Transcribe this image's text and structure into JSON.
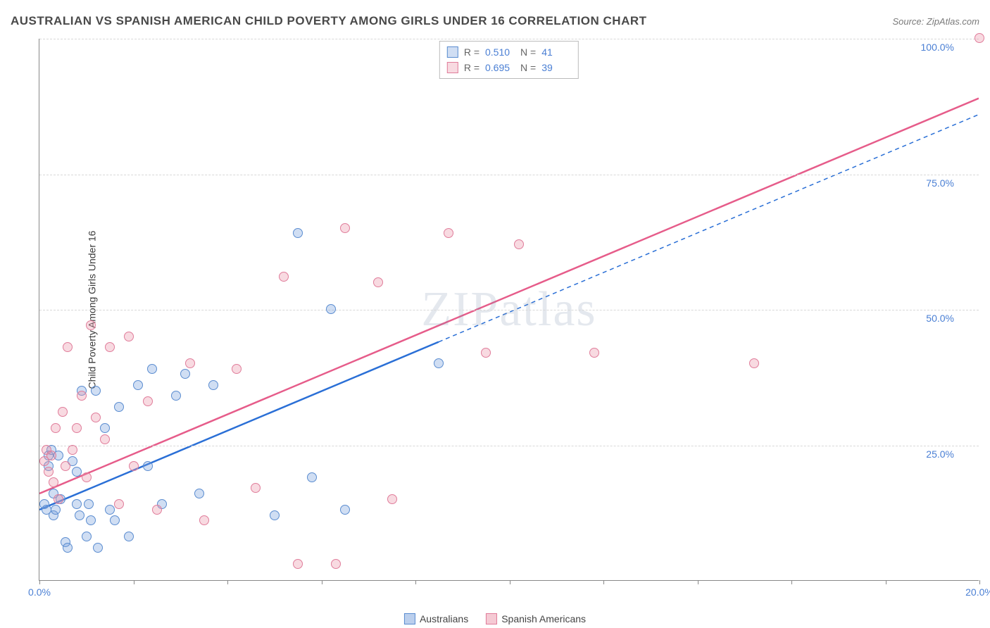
{
  "title": "AUSTRALIAN VS SPANISH AMERICAN CHILD POVERTY AMONG GIRLS UNDER 16 CORRELATION CHART",
  "source_label": "Source: ",
  "source_value": "ZipAtlas.com",
  "ylabel": "Child Poverty Among Girls Under 16",
  "watermark": "ZIPatlas",
  "chart": {
    "type": "scatter",
    "xlim": [
      0,
      20
    ],
    "ylim": [
      0,
      100
    ],
    "xtick_positions": [
      0,
      2,
      4,
      6,
      8,
      10,
      12,
      14,
      16,
      18,
      20
    ],
    "xtick_labels": {
      "0": "0.0%",
      "20": "20.0%"
    },
    "ytick_positions": [
      25,
      50,
      75,
      100
    ],
    "ytick_labels": {
      "25": "25.0%",
      "50": "50.0%",
      "75": "75.0%",
      "100": "100.0%"
    },
    "background_color": "#ffffff",
    "grid_color": "#d8d8d8",
    "axis_color": "#888888",
    "tick_label_color": "#4a7fd4",
    "marker_radius": 7,
    "series": [
      {
        "name": "Australians",
        "fill_color": "rgba(120,160,220,0.35)",
        "stroke_color": "#5a8cd0",
        "trend_color": "#2a6fd6",
        "R": "0.510",
        "N": "41",
        "trend_start": [
          0,
          13
        ],
        "trend_solid_end": [
          8.5,
          44
        ],
        "trend_dash_end": [
          20,
          86
        ],
        "points": [
          [
            0.1,
            14
          ],
          [
            0.15,
            13
          ],
          [
            0.2,
            21
          ],
          [
            0.2,
            23
          ],
          [
            0.25,
            24
          ],
          [
            0.3,
            12
          ],
          [
            0.3,
            16
          ],
          [
            0.35,
            13
          ],
          [
            0.4,
            23
          ],
          [
            0.45,
            15
          ],
          [
            0.55,
            7
          ],
          [
            0.6,
            6
          ],
          [
            0.7,
            22
          ],
          [
            0.8,
            14
          ],
          [
            0.8,
            20
          ],
          [
            0.85,
            12
          ],
          [
            0.9,
            35
          ],
          [
            1.0,
            8
          ],
          [
            1.05,
            14
          ],
          [
            1.1,
            11
          ],
          [
            1.2,
            35
          ],
          [
            1.25,
            6
          ],
          [
            1.4,
            28
          ],
          [
            1.5,
            13
          ],
          [
            1.6,
            11
          ],
          [
            1.7,
            32
          ],
          [
            1.9,
            8
          ],
          [
            2.1,
            36
          ],
          [
            2.3,
            21
          ],
          [
            2.4,
            39
          ],
          [
            2.6,
            14
          ],
          [
            2.9,
            34
          ],
          [
            3.1,
            38
          ],
          [
            3.4,
            16
          ],
          [
            3.7,
            36
          ],
          [
            5.0,
            12
          ],
          [
            5.5,
            64
          ],
          [
            5.8,
            19
          ],
          [
            6.2,
            50
          ],
          [
            6.5,
            13
          ],
          [
            8.5,
            40
          ]
        ]
      },
      {
        "name": "Spanish Americans",
        "fill_color": "rgba(235,150,170,0.35)",
        "stroke_color": "#e07c9a",
        "trend_color": "#e65c8a",
        "R": "0.695",
        "N": "39",
        "trend_start": [
          0,
          16
        ],
        "trend_solid_end": [
          20,
          89
        ],
        "points": [
          [
            0.1,
            22
          ],
          [
            0.15,
            24
          ],
          [
            0.2,
            20
          ],
          [
            0.25,
            23
          ],
          [
            0.3,
            18
          ],
          [
            0.35,
            28
          ],
          [
            0.4,
            15
          ],
          [
            0.5,
            31
          ],
          [
            0.55,
            21
          ],
          [
            0.6,
            43
          ],
          [
            0.7,
            24
          ],
          [
            0.8,
            28
          ],
          [
            0.9,
            34
          ],
          [
            1.0,
            19
          ],
          [
            1.1,
            47
          ],
          [
            1.2,
            30
          ],
          [
            1.4,
            26
          ],
          [
            1.5,
            43
          ],
          [
            1.7,
            14
          ],
          [
            1.9,
            45
          ],
          [
            2.0,
            21
          ],
          [
            2.3,
            33
          ],
          [
            2.5,
            13
          ],
          [
            3.2,
            40
          ],
          [
            3.5,
            11
          ],
          [
            4.2,
            39
          ],
          [
            4.6,
            17
          ],
          [
            5.2,
            56
          ],
          [
            5.5,
            3
          ],
          [
            6.3,
            3
          ],
          [
            6.5,
            65
          ],
          [
            7.2,
            55
          ],
          [
            7.5,
            15
          ],
          [
            8.7,
            64
          ],
          [
            9.5,
            42
          ],
          [
            10.2,
            62
          ],
          [
            11.8,
            42
          ],
          [
            15.2,
            40
          ],
          [
            20,
            100
          ]
        ]
      }
    ]
  },
  "legend_top": {
    "r_label": "R =",
    "n_label": "N ="
  },
  "legend_bottom": [
    {
      "swatch_fill": "rgba(120,160,220,0.5)",
      "swatch_stroke": "#5a8cd0",
      "label": "Australians"
    },
    {
      "swatch_fill": "rgba(235,150,170,0.5)",
      "swatch_stroke": "#e07c9a",
      "label": "Spanish Americans"
    }
  ]
}
